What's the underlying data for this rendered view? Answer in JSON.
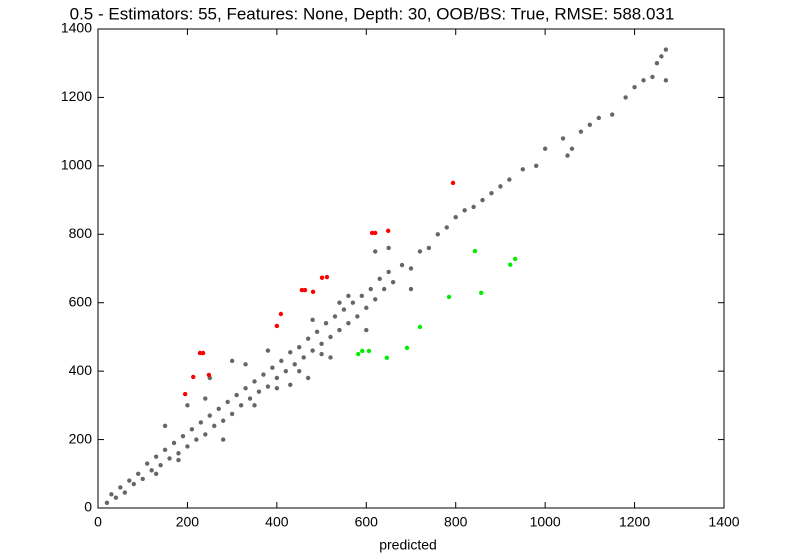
{
  "chart_data": {
    "type": "scatter",
    "title": "0.5 - Estimators: 55, Features: None, Depth: 30, OOB/BS: True, RMSE: 588.031",
    "xlabel": "predicted",
    "xlim": [
      0,
      1400
    ],
    "ylim": [
      0,
      1400
    ],
    "xticks": [
      0,
      200,
      400,
      600,
      800,
      1000,
      1200,
      1400
    ],
    "yticks": [
      0,
      200,
      400,
      600,
      800,
      1000,
      1200,
      1400
    ],
    "series": [
      {
        "color": "#000000",
        "x": [
          20,
          30,
          40,
          50,
          60,
          70,
          80,
          90,
          100,
          110,
          120,
          130,
          140,
          150,
          160,
          170,
          180,
          190,
          200,
          210,
          220,
          230,
          240,
          250,
          260,
          270,
          280,
          290,
          300,
          310,
          320,
          330,
          340,
          350,
          360,
          370,
          380,
          390,
          400,
          410,
          420,
          430,
          440,
          450,
          460,
          470,
          480,
          490,
          500,
          510,
          520,
          530,
          540,
          550,
          560,
          570,
          580,
          590,
          600,
          610,
          620,
          630,
          640,
          650,
          660,
          680,
          700,
          720,
          740,
          760,
          780,
          800,
          820,
          840,
          860,
          880,
          900,
          920,
          950,
          980,
          1000,
          1040,
          1050,
          1060,
          1080,
          1100,
          1120,
          1150,
          1180,
          1200,
          1220,
          1240,
          1250,
          1260,
          1270,
          1270,
          150,
          200,
          250,
          300,
          350,
          400,
          450,
          500,
          180,
          130,
          240,
          280,
          330,
          380,
          430,
          480,
          520,
          560,
          600,
          620,
          650,
          700,
          540,
          470
        ],
        "values": [
          15,
          40,
          30,
          60,
          45,
          80,
          70,
          100,
          85,
          130,
          110,
          150,
          125,
          170,
          145,
          190,
          160,
          210,
          180,
          230,
          200,
          250,
          215,
          270,
          240,
          290,
          255,
          310,
          275,
          330,
          300,
          350,
          320,
          370,
          340,
          390,
          355,
          410,
          380,
          430,
          400,
          455,
          420,
          470,
          440,
          495,
          460,
          515,
          480,
          540,
          500,
          560,
          520,
          580,
          540,
          600,
          560,
          620,
          585,
          640,
          610,
          670,
          640,
          690,
          660,
          710,
          700,
          750,
          760,
          800,
          820,
          850,
          870,
          880,
          900,
          920,
          940,
          960,
          990,
          1000,
          1050,
          1080,
          1030,
          1050,
          1100,
          1120,
          1140,
          1150,
          1200,
          1230,
          1250,
          1260,
          1300,
          1320,
          1340,
          1250,
          240,
          300,
          380,
          430,
          300,
          350,
          400,
          450,
          140,
          100,
          320,
          200,
          420,
          460,
          360,
          550,
          440,
          620,
          520,
          750,
          760,
          640,
          600,
          380
        ]
      },
      {
        "color": "#ff0000",
        "x": [
          195,
          213,
          228,
          235,
          248,
          400,
          409,
          456,
          463,
          481,
          501,
          512,
          613,
          620,
          649,
          794
        ],
        "values": [
          333,
          383,
          453,
          453,
          389,
          532,
          567,
          637,
          637,
          632,
          673,
          675,
          804,
          804,
          810,
          950
        ]
      },
      {
        "color": "#00ee00",
        "x": [
          582,
          591,
          606,
          646,
          691,
          720,
          785,
          843,
          857,
          922,
          933
        ],
        "values": [
          450,
          459,
          459,
          439,
          468,
          529,
          617,
          751,
          629,
          711,
          728
        ]
      }
    ]
  }
}
